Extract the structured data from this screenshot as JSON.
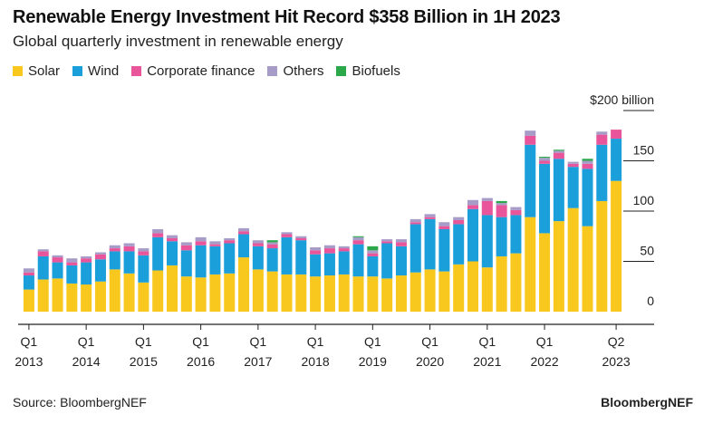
{
  "title": "Renewable Energy Investment Hit Record $358 Billion in 1H 2023",
  "subtitle": "Global quarterly investment in renewable energy",
  "source": "Source: BloombergNEF",
  "brand": "BloombergNEF",
  "legend": [
    {
      "name": "Solar",
      "color": "#F9C81E"
    },
    {
      "name": "Wind",
      "color": "#1A9FDB"
    },
    {
      "name": "Corporate finance",
      "color": "#E8559A"
    },
    {
      "name": "Others",
      "color": "#A79BC8"
    },
    {
      "name": "Biofuels",
      "color": "#2AA84A"
    }
  ],
  "chart_data": {
    "type": "bar",
    "stacked": true,
    "title": "Renewable Energy Investment Hit Record $358 Billion in 1H 2023",
    "subtitle": "Global quarterly investment in renewable energy",
    "unit_label": "$200 billion",
    "ylim": [
      0,
      200
    ],
    "yticks": [
      "0",
      "50",
      "100",
      "150",
      "$200 billion"
    ],
    "ytick_values": [
      0,
      50,
      100,
      150,
      200
    ],
    "x_tick_labels": [
      {
        "q": "Q1",
        "year": "2013",
        "index": 0
      },
      {
        "q": "Q1",
        "year": "2014",
        "index": 4
      },
      {
        "q": "Q1",
        "year": "2015",
        "index": 8
      },
      {
        "q": "Q1",
        "year": "2016",
        "index": 12
      },
      {
        "q": "Q1",
        "year": "2017",
        "index": 16
      },
      {
        "q": "Q1",
        "year": "2018",
        "index": 20
      },
      {
        "q": "Q1",
        "year": "2019",
        "index": 24
      },
      {
        "q": "Q1",
        "year": "2020",
        "index": 28
      },
      {
        "q": "Q1",
        "year": "2021",
        "index": 32
      },
      {
        "q": "Q1",
        "year": "2022",
        "index": 36
      },
      {
        "q": "Q2",
        "year": "2023",
        "index": 41
      }
    ],
    "series": [
      {
        "name": "Solar",
        "color": "#F9C81E",
        "values": [
          22,
          32,
          33,
          28,
          27,
          30,
          42,
          38,
          29,
          41,
          46,
          35,
          34,
          37,
          38,
          54,
          42,
          40,
          37,
          37,
          35,
          36,
          37,
          35,
          35,
          33,
          36,
          39,
          42,
          40,
          47,
          50,
          44,
          55,
          58,
          94,
          78,
          90,
          103,
          85,
          110,
          130
        ]
      },
      {
        "name": "Wind",
        "color": "#1A9FDB",
        "values": [
          14,
          23,
          16,
          18,
          22,
          22,
          18,
          22,
          27,
          33,
          24,
          26,
          32,
          28,
          30,
          23,
          23,
          23,
          37,
          34,
          22,
          22,
          23,
          32,
          20,
          35,
          29,
          48,
          50,
          42,
          40,
          52,
          52,
          39,
          38,
          72,
          69,
          62,
          41,
          57,
          56,
          42
        ]
      },
      {
        "name": "Corporate finance",
        "color": "#E8559A",
        "values": [
          3,
          5,
          5,
          3,
          4,
          5,
          3,
          5,
          4,
          4,
          3,
          5,
          4,
          2,
          3,
          3,
          3,
          4,
          3,
          2,
          4,
          5,
          3,
          4,
          3,
          2,
          4,
          2,
          2,
          3,
          4,
          4,
          14,
          12,
          5,
          9,
          3,
          6,
          3,
          5,
          10,
          9
        ]
      },
      {
        "name": "Others",
        "color": "#A79BC8",
        "values": [
          4,
          2,
          2,
          4,
          2,
          2,
          3,
          3,
          3,
          4,
          3,
          3,
          4,
          3,
          2,
          3,
          3,
          2,
          2,
          2,
          3,
          3,
          2,
          3,
          3,
          2,
          3,
          3,
          3,
          4,
          3,
          5,
          3,
          2,
          3,
          5,
          3,
          2,
          2,
          3,
          3,
          0
        ]
      },
      {
        "name": "Biofuels",
        "color": "#2AA84A",
        "values": [
          0,
          0,
          0,
          0,
          0,
          0,
          0,
          0,
          0,
          0,
          0,
          0,
          0,
          0,
          0,
          0,
          0,
          2,
          0,
          0,
          0,
          0,
          0,
          1,
          4,
          0,
          0,
          0,
          0,
          0,
          0,
          0,
          0,
          2,
          0,
          0,
          1,
          1,
          0,
          2,
          0,
          0
        ]
      }
    ]
  }
}
